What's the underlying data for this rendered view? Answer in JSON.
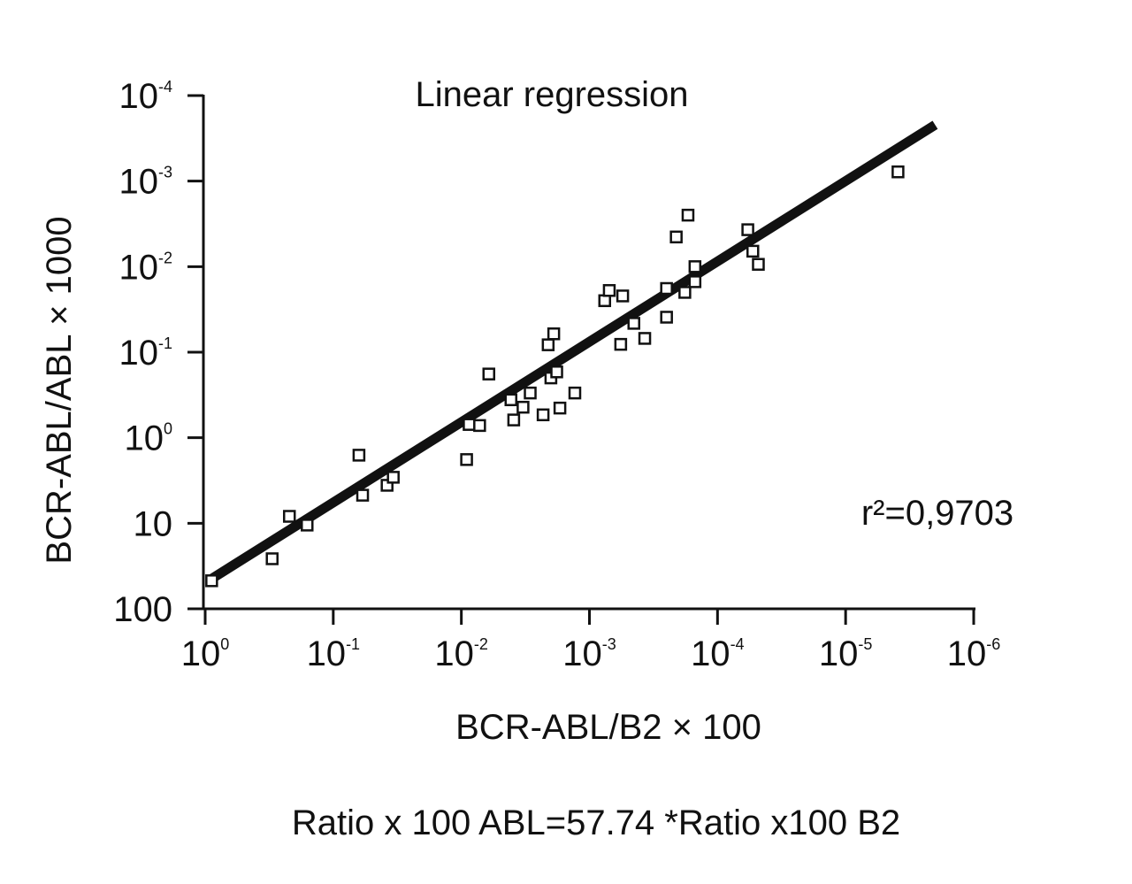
{
  "chart_data": {
    "type": "scatter",
    "title": "Linear regression",
    "xlabel": "BCR-ABL/B2 × 100",
    "ylabel": "BCR-ABL/ABL × 1000",
    "equation": "Ratio x 100 ABL=57.74 *Ratio x100 B2",
    "r2_label": "r²=0,9703",
    "x_scale": "log-reversed",
    "y_scale": "log",
    "xlim": [
      1,
      1e-06
    ],
    "ylim": [
      100,
      0.0001
    ],
    "x_ticks": [
      {
        "value": 1,
        "base": "10",
        "exp": "0"
      },
      {
        "value": 0.1,
        "base": "10",
        "exp": "-1"
      },
      {
        "value": 0.01,
        "base": "10",
        "exp": "-2"
      },
      {
        "value": 0.001,
        "base": "10",
        "exp": "-3"
      },
      {
        "value": 0.0001,
        "base": "10",
        "exp": "-4"
      },
      {
        "value": 1e-05,
        "base": "10",
        "exp": "-5"
      },
      {
        "value": 1e-06,
        "base": "10",
        "exp": "-6"
      }
    ],
    "y_ticks": [
      {
        "value": 0.0001,
        "base": "10",
        "exp": "-4"
      },
      {
        "value": 0.001,
        "base": "10",
        "exp": "-3"
      },
      {
        "value": 0.01,
        "base": "10",
        "exp": "-2"
      },
      {
        "value": 0.1,
        "base": "10",
        "exp": "-1"
      },
      {
        "value": 1,
        "base": "10",
        "exp": "0"
      },
      {
        "value": 10,
        "base": "10",
        "exp": ""
      },
      {
        "value": 100,
        "base": "100",
        "exp": ""
      }
    ],
    "regression_line": {
      "x": [
        0.9,
        2e-06
      ],
      "y": [
        45,
        0.00022
      ]
    },
    "points": [
      {
        "x": 0.89,
        "y": 47
      },
      {
        "x": 0.3,
        "y": 26
      },
      {
        "x": 0.22,
        "y": 8.3
      },
      {
        "x": 0.16,
        "y": 10.5
      },
      {
        "x": 0.063,
        "y": 1.6
      },
      {
        "x": 0.059,
        "y": 4.7
      },
      {
        "x": 0.038,
        "y": 3.6
      },
      {
        "x": 0.034,
        "y": 2.9
      },
      {
        "x": 0.0091,
        "y": 1.8
      },
      {
        "x": 0.0087,
        "y": 0.7
      },
      {
        "x": 0.0072,
        "y": 0.72
      },
      {
        "x": 0.0061,
        "y": 0.18
      },
      {
        "x": 0.0041,
        "y": 0.36
      },
      {
        "x": 0.0039,
        "y": 0.62
      },
      {
        "x": 0.0033,
        "y": 0.44
      },
      {
        "x": 0.0029,
        "y": 0.3
      },
      {
        "x": 0.0023,
        "y": 0.54
      },
      {
        "x": 0.0021,
        "y": 0.082
      },
      {
        "x": 0.002,
        "y": 0.2
      },
      {
        "x": 0.0019,
        "y": 0.061
      },
      {
        "x": 0.0018,
        "y": 0.17
      },
      {
        "x": 0.0017,
        "y": 0.45
      },
      {
        "x": 0.0013,
        "y": 0.3
      },
      {
        "x": 0.00076,
        "y": 0.025
      },
      {
        "x": 0.0007,
        "y": 0.019
      },
      {
        "x": 0.00057,
        "y": 0.081
      },
      {
        "x": 0.00055,
        "y": 0.022
      },
      {
        "x": 0.00045,
        "y": 0.046
      },
      {
        "x": 0.00037,
        "y": 0.069
      },
      {
        "x": 0.00025,
        "y": 0.039
      },
      {
        "x": 0.00025,
        "y": 0.018
      },
      {
        "x": 0.00021,
        "y": 0.0045
      },
      {
        "x": 0.00018,
        "y": 0.02
      },
      {
        "x": 0.00017,
        "y": 0.0025
      },
      {
        "x": 0.00015,
        "y": 0.01
      },
      {
        "x": 0.00015,
        "y": 0.015
      },
      {
        "x": 5.8e-05,
        "y": 0.0037
      },
      {
        "x": 5.3e-05,
        "y": 0.0066
      },
      {
        "x": 4.8e-05,
        "y": 0.0094
      },
      {
        "x": 3.9e-06,
        "y": 0.00078
      }
    ]
  }
}
